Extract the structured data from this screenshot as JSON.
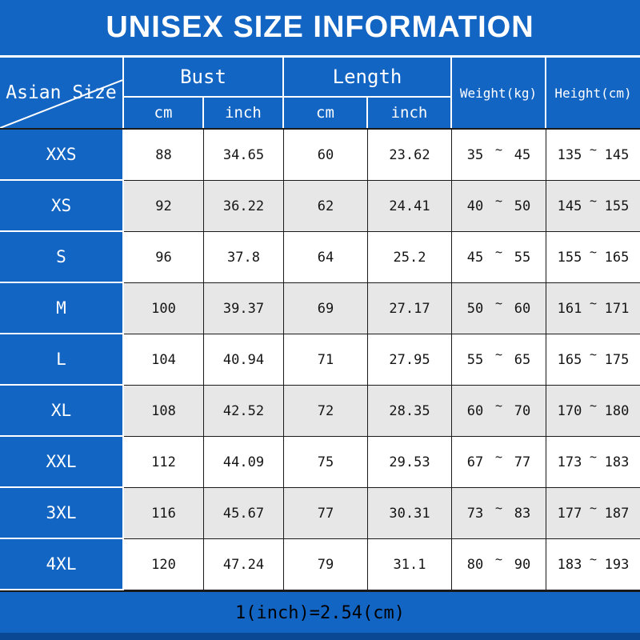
{
  "title": "UNISEX SIZE INFORMATION",
  "footer_note": "1(inch)=2.54(cm)",
  "colors": {
    "blue": "#1365C4",
    "blue_dark": "#0A4894",
    "row_alt": "#E7E7E7",
    "grid_line": "#1A1A1A"
  },
  "table": {
    "corner_label": "Asian Size",
    "group_headers": {
      "bust": "Bust",
      "length": "Length"
    },
    "sub_headers": {
      "bust_cm": "cm",
      "bust_inch": "inch",
      "length_cm": "cm",
      "length_inch": "inch"
    },
    "span_headers": {
      "weight": "Weight(kg)",
      "height": "Height(cm)"
    },
    "tilde": "~",
    "rows": [
      {
        "size": "XXS",
        "bust_cm": "88",
        "bust_inch": "34.65",
        "length_cm": "60",
        "length_inch": "23.62",
        "weight_min": "35",
        "weight_max": "45",
        "height_min": "135",
        "height_max": "145"
      },
      {
        "size": "XS",
        "bust_cm": "92",
        "bust_inch": "36.22",
        "length_cm": "62",
        "length_inch": "24.41",
        "weight_min": "40",
        "weight_max": "50",
        "height_min": "145",
        "height_max": "155"
      },
      {
        "size": "S",
        "bust_cm": "96",
        "bust_inch": "37.8",
        "length_cm": "64",
        "length_inch": "25.2",
        "weight_min": "45",
        "weight_max": "55",
        "height_min": "155",
        "height_max": "165"
      },
      {
        "size": "M",
        "bust_cm": "100",
        "bust_inch": "39.37",
        "length_cm": "69",
        "length_inch": "27.17",
        "weight_min": "50",
        "weight_max": "60",
        "height_min": "161",
        "height_max": "171"
      },
      {
        "size": "L",
        "bust_cm": "104",
        "bust_inch": "40.94",
        "length_cm": "71",
        "length_inch": "27.95",
        "weight_min": "55",
        "weight_max": "65",
        "height_min": "165",
        "height_max": "175"
      },
      {
        "size": "XL",
        "bust_cm": "108",
        "bust_inch": "42.52",
        "length_cm": "72",
        "length_inch": "28.35",
        "weight_min": "60",
        "weight_max": "70",
        "height_min": "170",
        "height_max": "180"
      },
      {
        "size": "XXL",
        "bust_cm": "112",
        "bust_inch": "44.09",
        "length_cm": "75",
        "length_inch": "29.53",
        "weight_min": "67",
        "weight_max": "77",
        "height_min": "173",
        "height_max": "183"
      },
      {
        "size": "3XL",
        "bust_cm": "116",
        "bust_inch": "45.67",
        "length_cm": "77",
        "length_inch": "30.31",
        "weight_min": "73",
        "weight_max": "83",
        "height_min": "177",
        "height_max": "187"
      },
      {
        "size": "4XL",
        "bust_cm": "120",
        "bust_inch": "47.24",
        "length_cm": "79",
        "length_inch": "31.1",
        "weight_min": "80",
        "weight_max": "90",
        "height_min": "183",
        "height_max": "193"
      }
    ]
  },
  "chart_data": {
    "type": "table",
    "title": "UNISEX SIZE INFORMATION",
    "columns": [
      "Asian Size",
      "Bust cm",
      "Bust inch",
      "Length cm",
      "Length inch",
      "Weight(kg)",
      "Height(cm)"
    ],
    "rows": [
      [
        "XXS",
        88,
        34.65,
        60,
        23.62,
        "35~45",
        "135~145"
      ],
      [
        "XS",
        92,
        36.22,
        62,
        24.41,
        "40~50",
        "145~155"
      ],
      [
        "S",
        96,
        37.8,
        64,
        25.2,
        "45~55",
        "155~165"
      ],
      [
        "M",
        100,
        39.37,
        69,
        27.17,
        "50~60",
        "161~171"
      ],
      [
        "L",
        104,
        40.94,
        71,
        27.95,
        "55~65",
        "165~175"
      ],
      [
        "XL",
        108,
        42.52,
        72,
        28.35,
        "60~70",
        "170~180"
      ],
      [
        "XXL",
        112,
        44.09,
        75,
        29.53,
        "67~77",
        "173~183"
      ],
      [
        "3XL",
        116,
        45.67,
        77,
        30.31,
        "73~83",
        "177~187"
      ],
      [
        "4XL",
        120,
        47.24,
        79,
        31.1,
        "80~90",
        "183~193"
      ]
    ],
    "footnote": "1(inch)=2.54(cm)"
  }
}
